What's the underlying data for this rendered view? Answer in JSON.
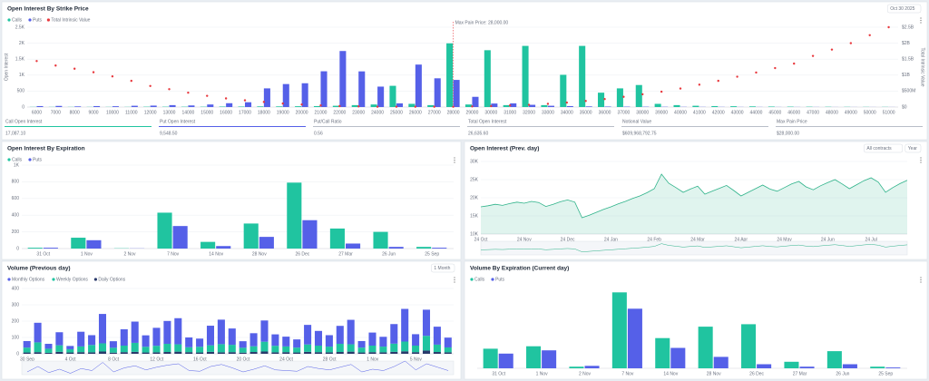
{
  "chart_data": [
    {
      "type": "bar",
      "title": "Open Interest By Strike Price",
      "controls": [
        "Oct 30 2025"
      ],
      "ylabel": "Open Interest",
      "y2label": "Total Intrinsic Value",
      "categories": [
        "6000",
        "7000",
        "8000",
        "9000",
        "10000",
        "11000",
        "12000",
        "13000",
        "14000",
        "15000",
        "16000",
        "17000",
        "18000",
        "19000",
        "20000",
        "21000",
        "22000",
        "23000",
        "24000",
        "25000",
        "26000",
        "27000",
        "28000",
        "29000",
        "30000",
        "31000",
        "32000",
        "33000",
        "34000",
        "35000",
        "36000",
        "37000",
        "38000",
        "39000",
        "40000",
        "41000",
        "42000",
        "43000",
        "44000",
        "45000",
        "46000",
        "47000",
        "48000",
        "49000",
        "50000",
        "51000"
      ],
      "series": [
        {
          "name": "Calls",
          "color": "#20c4a0",
          "values": [
            5,
            5,
            5,
            5,
            5,
            5,
            10,
            10,
            10,
            10,
            15,
            15,
            20,
            20,
            25,
            30,
            40,
            60,
            80,
            665,
            100,
            60,
            1995,
            80,
            1780,
            60,
            1915,
            60,
            1010,
            1915,
            450,
            585,
            690,
            100,
            60,
            40,
            30,
            25,
            20,
            15,
            12,
            10,
            8,
            6,
            5,
            5
          ]
        },
        {
          "name": "Puts",
          "color": "#5560e8",
          "values": [
            30,
            35,
            20,
            30,
            25,
            40,
            45,
            60,
            50,
            80,
            120,
            150,
            585,
            720,
            745,
            1120,
            1755,
            1117,
            640,
            115,
            1330,
            900,
            850,
            320,
            110,
            115,
            70,
            40,
            30,
            20,
            15,
            12,
            10,
            8,
            6,
            5,
            5,
            4,
            4,
            3,
            3,
            3,
            2,
            2,
            2,
            2
          ]
        },
        {
          "name": "Total Intrinsic Value",
          "color": "#e8383d",
          "axis": "y2",
          "style": "dots",
          "values": [
            1.44,
            1.3,
            1.2,
            1.09,
            0.96,
            0.82,
            0.66,
            0.56,
            0.45,
            0.35,
            0.27,
            0.21,
            0.16,
            0.11,
            0.08,
            0.05,
            0.03,
            0.02,
            0.01,
            0.01,
            0.01,
            0.01,
            0.01,
            0.02,
            0.03,
            0.05,
            0.07,
            0.1,
            0.14,
            0.19,
            0.25,
            0.32,
            0.4,
            0.48,
            0.58,
            0.7,
            0.82,
            0.95,
            1.08,
            1.22,
            1.36,
            1.6,
            1.8,
            2.0,
            2.25,
            2.5
          ]
        }
      ],
      "annotation": {
        "text": "Max Pain Price: 28,000.00",
        "category": "28000"
      },
      "ylim": [
        0,
        2500
      ],
      "yticks": [
        0,
        500,
        {
          "value": 1000,
          "label": "1K"
        },
        {
          "value": 1500,
          "label": "1.5K"
        },
        {
          "value": 2000,
          "label": "2K"
        },
        {
          "value": 2500,
          "label": "2.5K"
        }
      ],
      "y2lim": [
        0,
        2.5
      ],
      "y2ticks": [
        {
          "value": 0,
          "label": "$0"
        },
        {
          "value": 0.5,
          "label": "$500M"
        },
        {
          "value": 1,
          "label": "$1B"
        },
        {
          "value": 1.5,
          "label": "$1.5B"
        },
        {
          "value": 2,
          "label": "$2B"
        },
        {
          "value": 2.5,
          "label": "$2.5B"
        }
      ],
      "grid": true
    },
    {
      "type": "bar",
      "title": "Open Interest By Expiration",
      "categories": [
        "31 Oct",
        "1 Nov",
        "2 Nov",
        "7 Nov",
        "14 Nov",
        "28 Nov",
        "26 Dec",
        "27 Mar",
        "26 Jun",
        "25 Sep"
      ],
      "series": [
        {
          "name": "Calls",
          "color": "#20c4a0",
          "values": [
            10,
            130,
            3,
            430,
            80,
            300,
            790,
            240,
            200,
            20
          ]
        },
        {
          "name": "Puts",
          "color": "#5560e8",
          "values": [
            10,
            100,
            2,
            270,
            30,
            140,
            340,
            60,
            20,
            10
          ]
        }
      ],
      "ylim": [
        0,
        1000
      ],
      "yticks": [
        0,
        200,
        400,
        600,
        800,
        {
          "value": 1000,
          "label": "1K"
        }
      ],
      "grid": true
    },
    {
      "type": "area",
      "title": "Open Interest (Prev. day)",
      "controls": [
        "All contracts",
        "Year"
      ],
      "color": "#2fb38a",
      "categories": [
        "24 Oct",
        null,
        null,
        null,
        null,
        null,
        "24 Nov",
        null,
        null,
        null,
        null,
        null,
        "24 Dec",
        null,
        null,
        null,
        null,
        null,
        "24 Jan",
        null,
        null,
        null,
        null,
        null,
        "24 Feb",
        null,
        null,
        null,
        null,
        null,
        "24 Mar",
        null,
        null,
        null,
        null,
        null,
        "24 Apr",
        null,
        null,
        null,
        null,
        null,
        "24 May",
        null,
        null,
        null,
        null,
        null,
        "24 Jun",
        null,
        null,
        null,
        null,
        null,
        "24 Jul",
        null,
        null,
        null,
        null,
        null
      ],
      "values": [
        17500,
        17800,
        18200,
        17900,
        18400,
        18800,
        18500,
        19000,
        18700,
        17600,
        18200,
        18900,
        19400,
        18800,
        14500,
        15200,
        16000,
        16800,
        17500,
        18300,
        19000,
        19800,
        20500,
        21400,
        22500,
        26500,
        24000,
        22800,
        21500,
        22400,
        23200,
        21000,
        21800,
        22600,
        23400,
        22000,
        20500,
        21500,
        22500,
        23500,
        22400,
        21800,
        22800,
        23800,
        24500,
        23000,
        22200,
        23300,
        24200,
        25000,
        23800,
        22500,
        23600,
        24700,
        25500,
        24300,
        21500,
        22800,
        23900,
        24800
      ],
      "ylim": [
        10000,
        30000
      ],
      "yticks": [
        {
          "value": 10000,
          "label": "10K"
        },
        {
          "value": 15000,
          "label": "15K"
        },
        {
          "value": 20000,
          "label": "20K"
        },
        {
          "value": 25000,
          "label": "25K"
        },
        {
          "value": 30000,
          "label": "30K"
        }
      ],
      "grid": true
    },
    {
      "type": "bar",
      "stacked": true,
      "title": "Volume (Previous day)",
      "controls": [
        "1 Month"
      ],
      "categories": [
        "30 Sep",
        null,
        null,
        null,
        "4 Oct",
        null,
        null,
        null,
        "8 Oct",
        null,
        null,
        null,
        "12 Oct",
        null,
        null,
        null,
        "16 Oct",
        null,
        null,
        null,
        "20 Oct",
        null,
        null,
        null,
        "24 Oct",
        null,
        null,
        null,
        "28 Oct",
        null,
        null,
        null,
        "1 Nov",
        null,
        null,
        null,
        "5 Nov",
        null,
        null,
        null
      ],
      "series": [
        {
          "name": "Monthly Options",
          "color": "#5560e8",
          "values": [
            40,
            120,
            30,
            80,
            20,
            90,
            60,
            180,
            40,
            100,
            130,
            70,
            110,
            140,
            160,
            60,
            50,
            120,
            150,
            100,
            40,
            80,
            130,
            70,
            60,
            50,
            120,
            90,
            70,
            110,
            150,
            40,
            80,
            60,
            120,
            200,
            70,
            160,
            110,
            60
          ]
        },
        {
          "name": "Weekly Options",
          "color": "#20c4a0",
          "values": [
            30,
            60,
            25,
            40,
            20,
            35,
            45,
            50,
            30,
            40,
            55,
            35,
            40,
            50,
            45,
            30,
            35,
            40,
            50,
            45,
            30,
            35,
            60,
            40,
            35,
            30,
            45,
            40,
            35,
            50,
            45,
            30,
            40,
            35,
            50,
            60,
            40,
            90,
            45,
            30
          ]
        },
        {
          "name": "Daily Options",
          "color": "#2a3a6b",
          "values": [
            8,
            10,
            6,
            12,
            8,
            10,
            9,
            14,
            7,
            10,
            12,
            8,
            9,
            11,
            13,
            10,
            8,
            12,
            9,
            10,
            7,
            11,
            14,
            9,
            10,
            8,
            12,
            10,
            9,
            11,
            13,
            8,
            10,
            9,
            12,
            15,
            10,
            20,
            11,
            9
          ]
        }
      ],
      "ylim": [
        0,
        400
      ],
      "yticks": [
        0,
        100,
        200,
        300,
        400
      ],
      "grid": true
    },
    {
      "type": "bar",
      "title": "Volume By Expiration (Current day)",
      "categories": [
        "31 Oct",
        "1 Nov",
        "2 Nov",
        "7 Nov",
        "14 Nov",
        "28 Nov",
        "26 Dec",
        "27 Mar",
        "26 Jun",
        "25 Sep"
      ],
      "series": [
        {
          "name": "Calls",
          "color": "#20c4a0",
          "values": [
            24,
            27,
            2,
            93,
            37,
            51,
            54,
            8,
            21,
            2
          ]
        },
        {
          "name": "Puts",
          "color": "#5560e8",
          "values": [
            18,
            22,
            3,
            73,
            25,
            14,
            5,
            2,
            5,
            1
          ]
        }
      ],
      "ylim": [
        0,
        100
      ],
      "grid": false
    }
  ],
  "stats": [
    {
      "label": "Call Open Interest",
      "value": "17,087.10",
      "color": "#20c4a0"
    },
    {
      "label": "Put Open Interest",
      "value": "9,548.50",
      "color": "#5560e8"
    },
    {
      "label": "Put/Call Ratio",
      "value": "0.56",
      "color": "#b8bec8"
    },
    {
      "label": "Total Open Interest",
      "value": "26,635.60",
      "color": "#b8bec8"
    },
    {
      "label": "Notional Value",
      "value": "$609,968,792.75",
      "color": "#b8bec8"
    },
    {
      "label": "Max Pain Price",
      "value": "$28,000.00",
      "color": "#b8bec8"
    }
  ]
}
